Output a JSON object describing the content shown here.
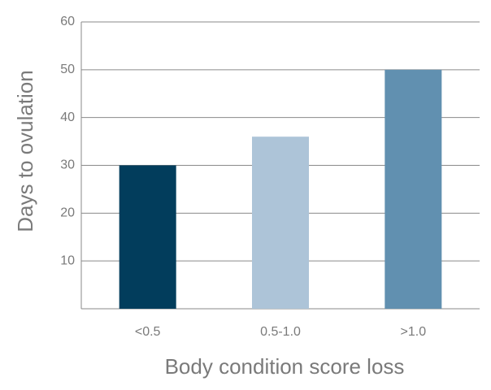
{
  "chart_data": {
    "type": "bar",
    "x_label": "Body condition score loss",
    "y_label": "Days to ovulation",
    "categories": [
      "<0.5",
      "0.5-1.0",
      ">1.0"
    ],
    "values": [
      30,
      36,
      50
    ],
    "colors": [
      "#023d5c",
      "#adc4d8",
      "#6190b0"
    ],
    "ylim": [
      0,
      60
    ],
    "yticks": [
      10,
      20,
      30,
      40,
      50,
      60
    ],
    "grid": true
  }
}
